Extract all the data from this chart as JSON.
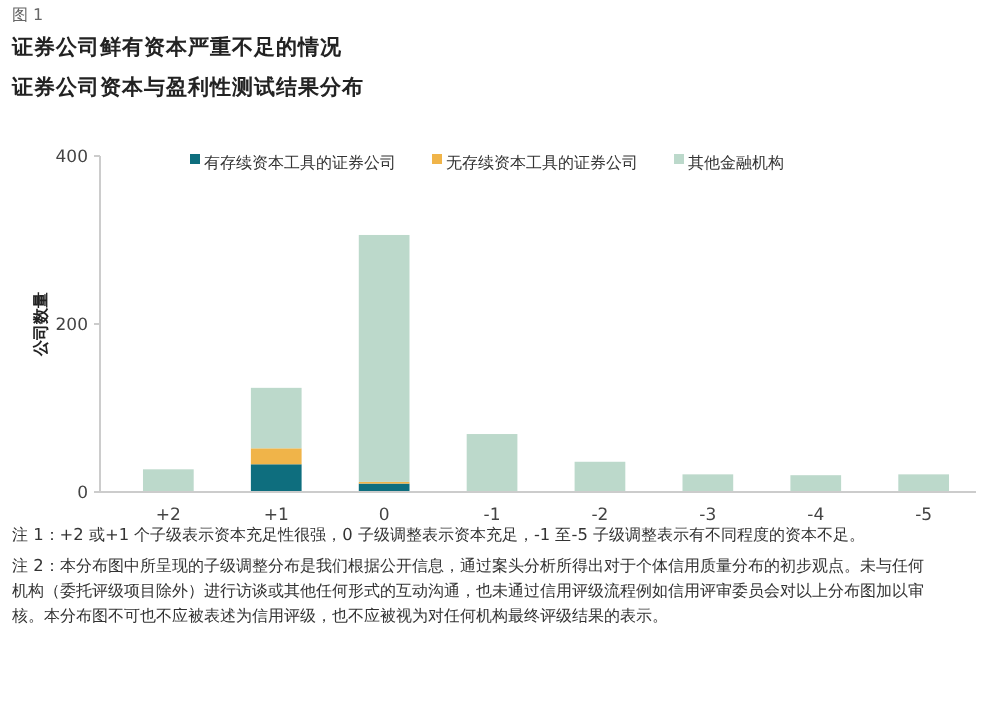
{
  "chart_data": {
    "type": "bar",
    "stacked": true,
    "title": "证券公司鲜有资本严重不足的情况",
    "subtitle": "证券公司资本与盈利性测试结果分布",
    "ylabel": "公司数量",
    "categories": [
      "+2",
      "+1",
      "0",
      "-1",
      "-2",
      "-3",
      "-4",
      "-5"
    ],
    "series": [
      {
        "name": "有存续资本工具的证券公司",
        "color": "#0e6e7e",
        "values": [
          0,
          33,
          10,
          0,
          0,
          0,
          0,
          0
        ]
      },
      {
        "name": "无存续资本工具的证券公司",
        "color": "#f0b449",
        "values": [
          0,
          19,
          2,
          0,
          0,
          0,
          0,
          0
        ]
      },
      {
        "name": "其他金融机构",
        "color": "#bcd9cb",
        "values": [
          27,
          72,
          294,
          69,
          36,
          21,
          20,
          21
        ]
      }
    ],
    "ylim": [
      0,
      400
    ],
    "yticks": [
      0,
      200,
      400
    ],
    "grid": false,
    "legend": "top",
    "annotations": [
      "图 1",
      "注 1：+2 或+1 个子级表示资本充足性很强，0 子级调整表示资本充足，-1 至-5 子级调整表示有不同程度的资本不足。",
      "注 2：本分布图中所呈现的子级调整分布是我们根据公开信息，通过案头分析所得出对于个体信用质量分布的初步观点。未与任何机构（委托评级项目除外）进行访谈或其他任何形式的互动沟通，也未通过信用评级流程例如信用评审委员会对以上分布图加以审核。本分布图不可也不应被表述为信用评级，也不应被视为对任何机构最终评级结果的表示。"
    ]
  }
}
